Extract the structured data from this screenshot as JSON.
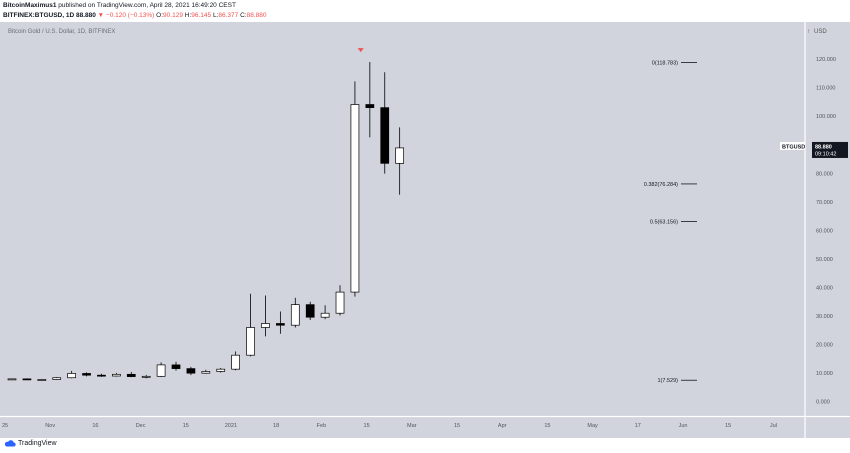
{
  "header": {
    "author": "BitcoinMaximus1",
    "published": " published on TradingView.com, April 28, 2021 16:49:20 CEST",
    "symbol": "BITFINEX:BTGUSD, 1D",
    "last": "88.880",
    "change": "−0.120 (−0.13%)",
    "o_label": "O:",
    "o": "90.129",
    "h_label": "H:",
    "h": "96.145",
    "l_label": "L:",
    "l": "86.377",
    "c_label": "C:",
    "c": "88.880"
  },
  "footer": {
    "brand": "TradingView"
  },
  "colors": {
    "background": "#d1d4dc",
    "candle": "#000000",
    "marker": "#ef5350",
    "label_bg": "#131722"
  },
  "chart_data": {
    "type": "candlestick",
    "title": "Bitcoin Gold / U.S. Dollar, 1D, BITFINEX",
    "currency": "USD",
    "ylim": [
      -5,
      133
    ],
    "y_ticks": [
      0,
      10,
      20,
      30,
      40,
      50,
      60,
      70,
      80,
      90,
      100,
      110,
      120
    ],
    "y_tick_labels": [
      "0.000",
      "10.000",
      "20.000",
      "30.000",
      "40.000",
      "50.000",
      "60.000",
      "70.000",
      "80.000",
      "90.000",
      "100.000",
      "110.000",
      "120.000"
    ],
    "x_tick_labels": [
      "25",
      "Nov",
      "16",
      "Dec",
      "15",
      "2021",
      "18",
      "Feb",
      "15",
      "Mar",
      "15",
      "Apr",
      "15",
      "May",
      "17",
      "Jun",
      "15",
      "Jul"
    ],
    "price_label": {
      "symbol": "BTGUSD",
      "value": "88.880",
      "countdown": "09:10:42",
      "price": 88.88
    },
    "fib_levels": [
      {
        "label": "0(118.783)",
        "value": 118.783
      },
      {
        "label": "0.382(76.284)",
        "value": 76.284
      },
      {
        "label": "0.5(63.156)",
        "value": 63.156
      },
      {
        "label": "1(7.529)",
        "value": 7.529
      }
    ],
    "top_marker": {
      "date": "2021-04-10",
      "price": 120
    },
    "candles": [
      [
        "2020-10-25",
        7.9,
        8.1,
        7.7,
        8.0
      ],
      [
        "2020-11-01",
        8.0,
        8.2,
        7.6,
        7.7
      ],
      [
        "2020-11-08",
        7.7,
        8.0,
        7.5,
        7.8
      ],
      [
        "2020-11-15",
        7.8,
        8.6,
        7.7,
        8.4
      ],
      [
        "2020-11-22",
        8.4,
        10.8,
        8.2,
        9.9
      ],
      [
        "2020-11-29",
        9.9,
        10.3,
        8.9,
        9.3
      ],
      [
        "2020-12-06",
        9.3,
        9.8,
        8.7,
        9.0
      ],
      [
        "2020-12-13",
        9.0,
        10.1,
        8.8,
        9.6
      ],
      [
        "2020-12-20",
        9.6,
        10.4,
        8.6,
        8.8
      ],
      [
        "2020-12-27",
        8.8,
        9.4,
        8.2,
        8.9
      ],
      [
        "2021-01-03",
        8.9,
        13.8,
        8.7,
        12.9
      ],
      [
        "2021-01-10",
        12.9,
        14.0,
        10.9,
        11.6
      ],
      [
        "2021-01-17",
        11.6,
        12.2,
        9.3,
        10.0
      ],
      [
        "2021-01-24",
        10.0,
        11.2,
        9.8,
        10.6
      ],
      [
        "2021-01-31",
        10.6,
        11.8,
        10.2,
        11.4
      ],
      [
        "2021-02-07",
        11.4,
        17.6,
        11.0,
        16.3
      ],
      [
        "2021-02-14",
        16.3,
        37.8,
        15.9,
        26.0
      ],
      [
        "2021-02-21",
        26.0,
        37.2,
        22.9,
        27.4
      ],
      [
        "2021-02-28",
        27.4,
        31.6,
        23.8,
        26.8
      ],
      [
        "2021-03-07",
        26.8,
        36.4,
        26.0,
        34.0
      ],
      [
        "2021-03-14",
        34.0,
        35.0,
        28.6,
        29.6
      ],
      [
        "2021-03-21",
        29.6,
        33.8,
        28.9,
        31.0
      ],
      [
        "2021-03-28",
        31.0,
        40.8,
        30.2,
        38.4
      ],
      [
        "2021-04-04",
        38.4,
        112.2,
        36.8,
        104.1
      ],
      [
        "2021-04-11",
        104.1,
        119.0,
        92.6,
        103.0
      ],
      [
        "2021-04-18",
        103.0,
        115.4,
        79.9,
        83.5
      ],
      [
        "2021-04-25",
        83.5,
        96.1,
        72.5,
        88.9
      ]
    ]
  }
}
